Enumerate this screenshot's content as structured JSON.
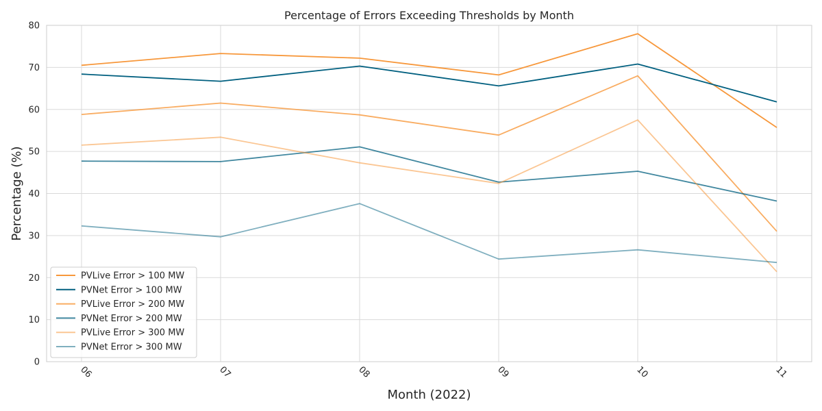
{
  "chart_data": {
    "type": "line",
    "title": "Percentage of Errors Exceeding Thresholds by Month",
    "xlabel": "Month (2022)",
    "ylabel": "Percentage (%)",
    "categories": [
      "06",
      "07",
      "08",
      "09",
      "10",
      "11"
    ],
    "ylim": [
      0,
      80
    ],
    "yticks": [
      0,
      10,
      20,
      30,
      40,
      50,
      60,
      70,
      80
    ],
    "grid": true,
    "legend_position": "lower-left",
    "series": [
      {
        "name": "PVLive Error > 100 MW",
        "color": "#f7973a",
        "opacity": 1.0,
        "values": [
          70.5,
          73.3,
          72.2,
          68.2,
          78.0,
          55.7
        ]
      },
      {
        "name": "PVNet Error > 100 MW",
        "color": "#005f7f",
        "opacity": 1.0,
        "values": [
          68.4,
          66.7,
          70.3,
          65.6,
          70.8,
          61.8
        ]
      },
      {
        "name": "PVLive Error > 200 MW",
        "color": "#f7973a",
        "opacity": 0.8,
        "values": [
          58.8,
          61.5,
          58.7,
          53.9,
          68.0,
          31.0
        ]
      },
      {
        "name": "PVNet Error > 200 MW",
        "color": "#005f7f",
        "opacity": 0.75,
        "values": [
          47.7,
          47.6,
          51.1,
          42.7,
          45.3,
          38.2
        ]
      },
      {
        "name": "PVLive Error > 300 MW",
        "color": "#f7973a",
        "opacity": 0.55,
        "values": [
          51.5,
          53.4,
          47.3,
          42.4,
          57.5,
          21.4
        ]
      },
      {
        "name": "PVNet Error > 300 MW",
        "color": "#005f7f",
        "opacity": 0.5,
        "values": [
          32.3,
          29.7,
          37.6,
          24.4,
          26.6,
          23.6
        ]
      }
    ]
  }
}
